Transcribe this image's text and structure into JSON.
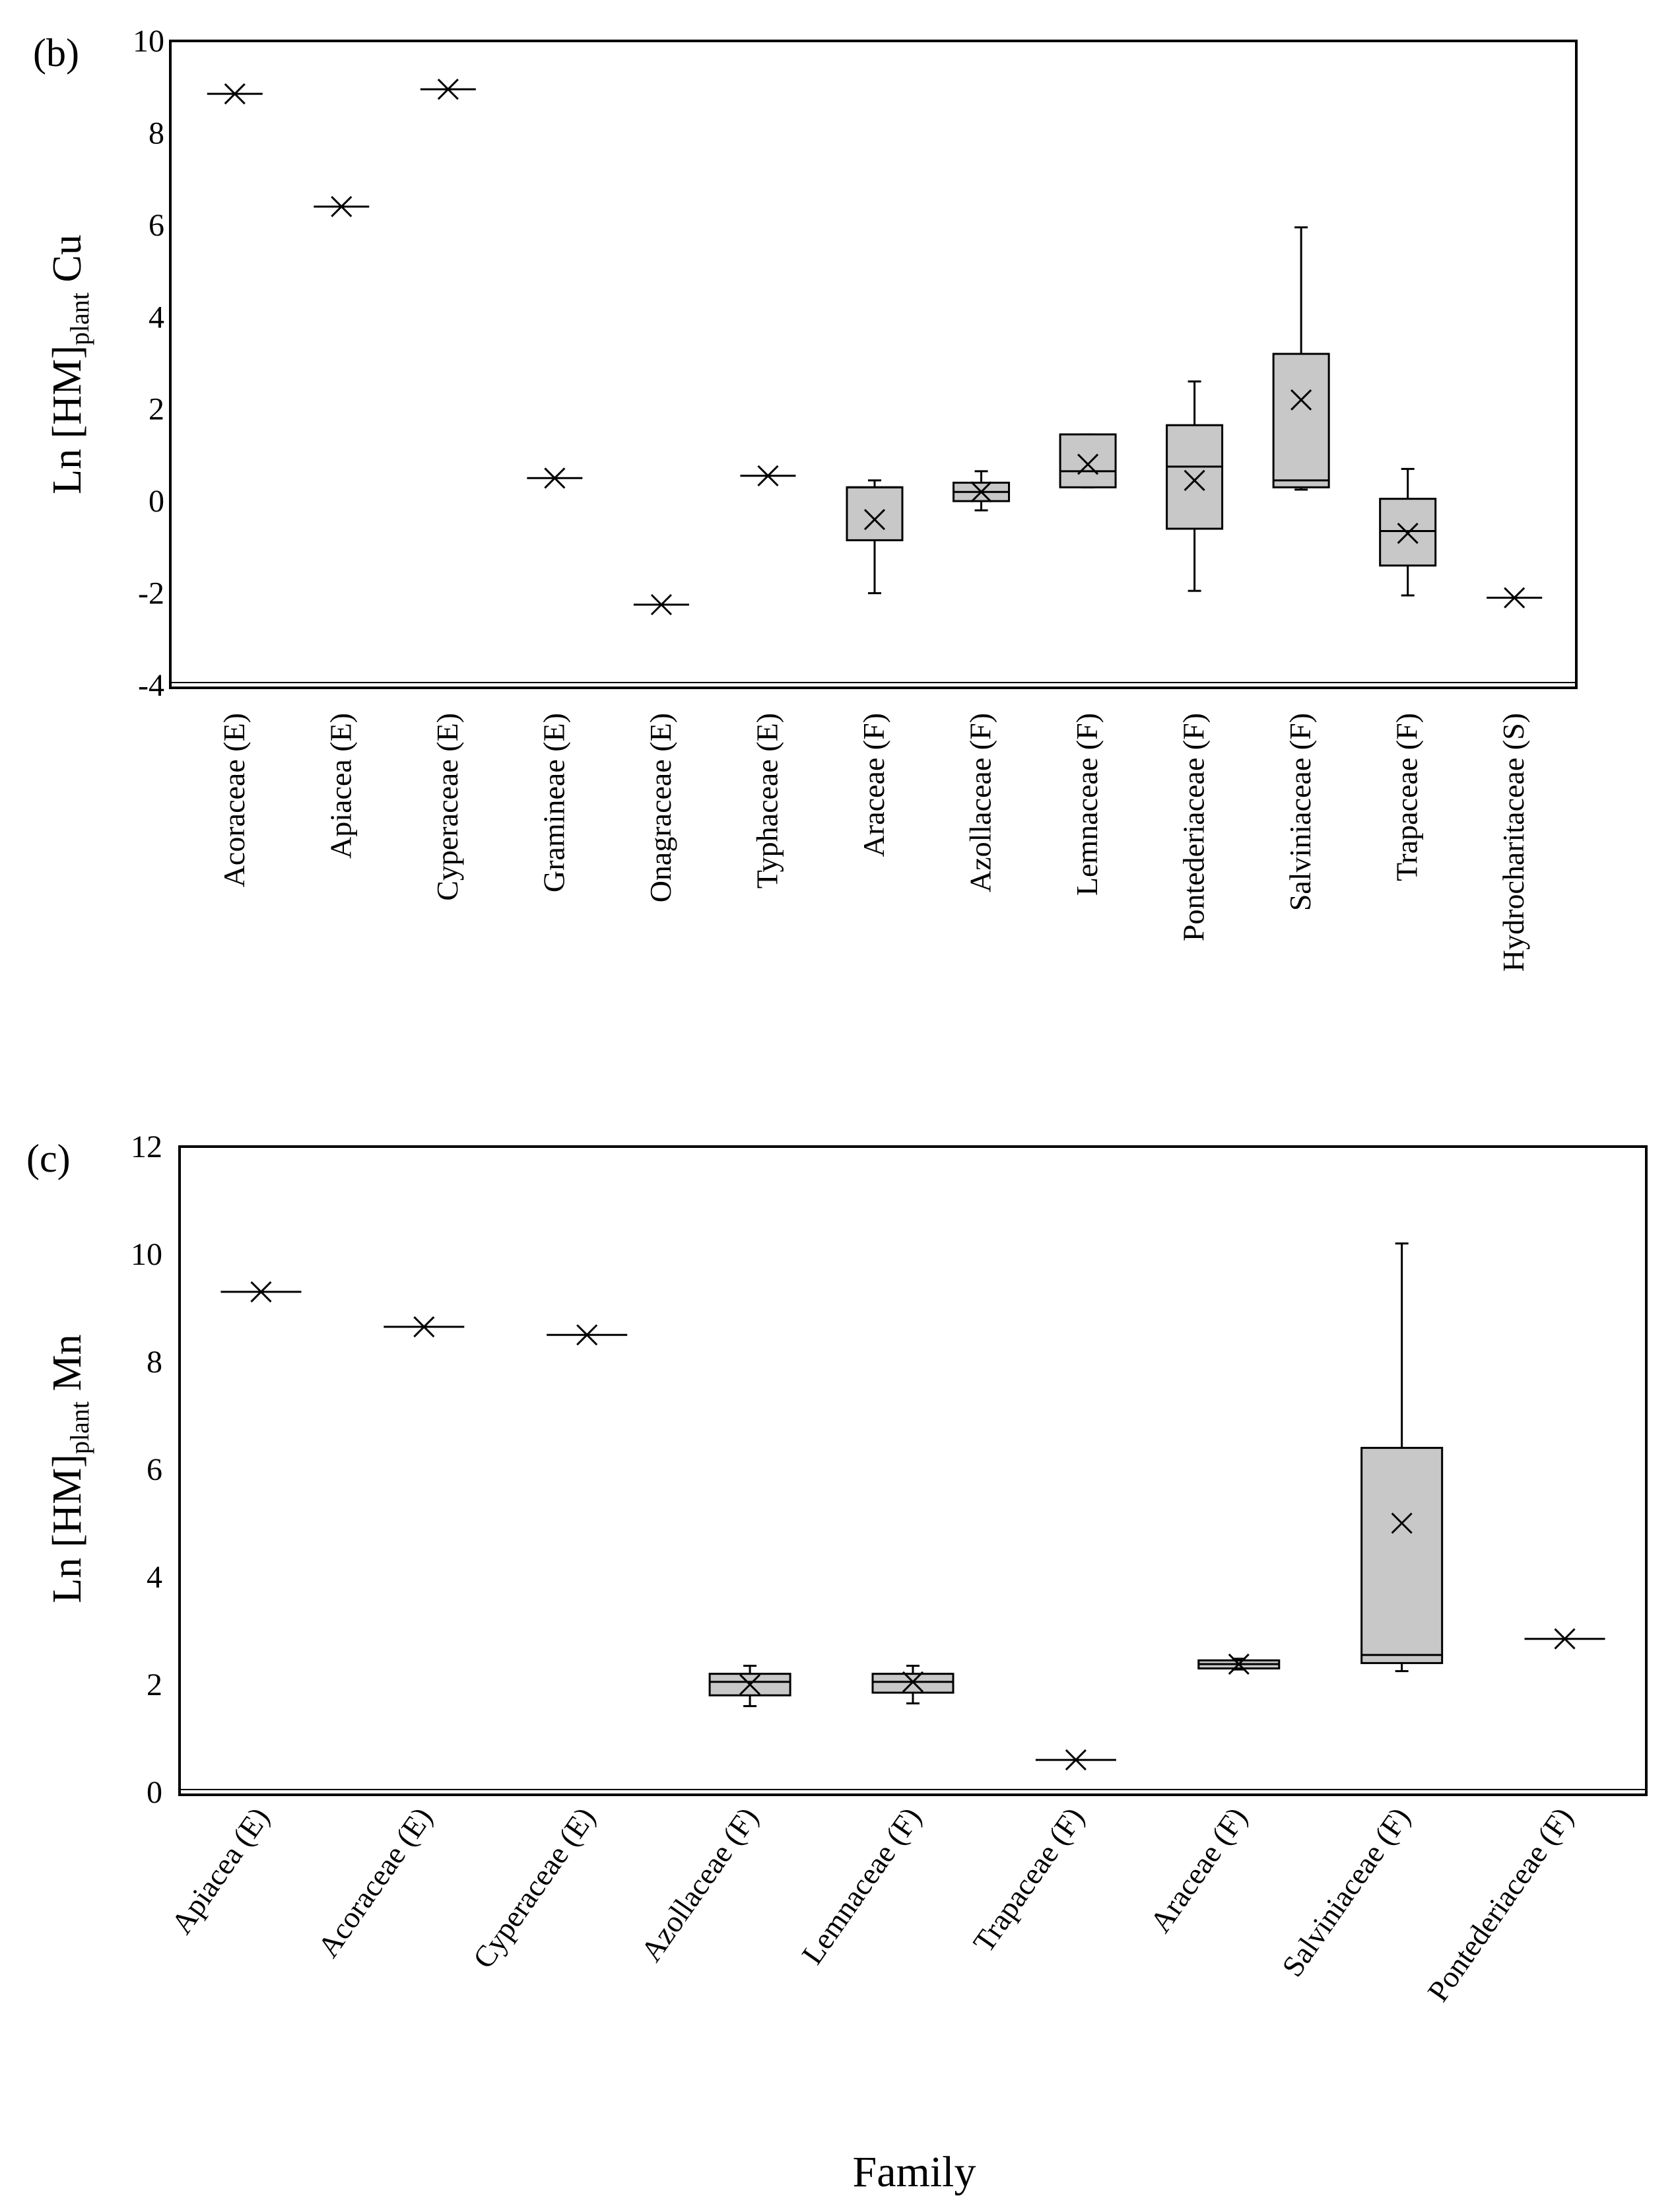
{
  "chart_data": [
    {
      "panel_label": "(b)",
      "type": "box",
      "ylabel": {
        "prefix": "Ln [HM]",
        "subscript": "plant",
        "suffix": " Cu"
      },
      "xlabel": "",
      "ylim": [
        -4,
        10
      ],
      "yticks": [
        "10",
        "8",
        "6",
        "4",
        "2",
        "0",
        "-2",
        "-4"
      ],
      "categories": [
        "Acoraceae (E)",
        "Apiacea (E)",
        "Cyperaceae (E)",
        "Gramineae (E)",
        "Onagraceae (E)",
        "Typhaceae (E)",
        "Araceae (F)",
        "Azollaceae (F)",
        "Lemnaceae (F)",
        "Pontederiaceae (F)",
        "Salviniaceae (F)",
        "Trapaceae (F)",
        "Hydrocharitaceae (S)"
      ],
      "boxes": [
        {
          "min": null,
          "q1": null,
          "median": 8.85,
          "q3": null,
          "max": null,
          "mean": 8.85
        },
        {
          "min": null,
          "q1": null,
          "median": 6.4,
          "q3": null,
          "max": null,
          "mean": 6.4
        },
        {
          "min": null,
          "q1": null,
          "median": 8.95,
          "q3": null,
          "max": null,
          "mean": 8.95
        },
        {
          "min": null,
          "q1": null,
          "median": 0.5,
          "q3": null,
          "max": null,
          "mean": 0.5
        },
        {
          "min": null,
          "q1": null,
          "median": -2.25,
          "q3": null,
          "max": null,
          "mean": -2.25
        },
        {
          "min": null,
          "q1": null,
          "median": 0.55,
          "q3": null,
          "max": null,
          "mean": 0.55
        },
        {
          "min": -2.0,
          "q1": -0.85,
          "median": 0.3,
          "q3": 0.3,
          "max": 0.45,
          "mean": -0.4
        },
        {
          "min": -0.2,
          "q1": 0.0,
          "median": 0.2,
          "q3": 0.4,
          "max": 0.65,
          "mean": 0.2
        },
        {
          "min": 0.3,
          "q1": 0.3,
          "median": 0.65,
          "q3": 1.45,
          "max": 1.45,
          "mean": 0.8
        },
        {
          "min": -1.95,
          "q1": -0.6,
          "median": 0.75,
          "q3": 1.65,
          "max": 2.6,
          "mean": 0.45
        },
        {
          "min": 0.25,
          "q1": 0.3,
          "median": 0.45,
          "q3": 3.2,
          "max": 5.95,
          "mean": 2.2
        },
        {
          "min": -2.05,
          "q1": -1.4,
          "median": -0.65,
          "q3": 0.05,
          "max": 0.7,
          "mean": -0.7
        },
        {
          "min": null,
          "q1": null,
          "median": -2.1,
          "q3": null,
          "max": null,
          "mean": -2.1
        }
      ]
    },
    {
      "panel_label": "(c)",
      "type": "box",
      "ylabel": {
        "prefix": "Ln [HM]",
        "subscript": "plant",
        "suffix": " Mn"
      },
      "xlabel": "Family",
      "ylim": [
        0,
        12
      ],
      "yticks": [
        "12",
        "10",
        "8",
        "6",
        "4",
        "2",
        "0"
      ],
      "categories": [
        "Apiacea (E)",
        "Acoraceae (E)",
        "Cyperaceae (E)",
        "Azollaceae (F)",
        "Lemnaceae (F)",
        "Trapaceae (F)",
        "Araceae (F)",
        "Salviniaceae (F)",
        "Pontederiaceae (F)"
      ],
      "boxes": [
        {
          "min": null,
          "q1": null,
          "median": 9.3,
          "q3": null,
          "max": null,
          "mean": 9.3
        },
        {
          "min": null,
          "q1": null,
          "median": 8.65,
          "q3": null,
          "max": null,
          "mean": 8.65
        },
        {
          "min": null,
          "q1": null,
          "median": 8.5,
          "q3": null,
          "max": null,
          "mean": 8.5
        },
        {
          "min": 1.6,
          "q1": 1.8,
          "median": 2.05,
          "q3": 2.2,
          "max": 2.35,
          "mean": 2.0
        },
        {
          "min": 1.65,
          "q1": 1.85,
          "median": 2.05,
          "q3": 2.2,
          "max": 2.35,
          "mean": 2.05
        },
        {
          "min": null,
          "q1": null,
          "median": 0.6,
          "q3": null,
          "max": null,
          "mean": 0.6
        },
        {
          "min": 2.28,
          "q1": 2.3,
          "median": 2.38,
          "q3": 2.45,
          "max": 2.48,
          "mean": 2.38
        },
        {
          "min": 2.25,
          "q1": 2.4,
          "median": 2.55,
          "q3": 6.4,
          "max": 10.2,
          "mean": 5.0
        },
        {
          "min": null,
          "q1": null,
          "median": 2.85,
          "q3": null,
          "max": null,
          "mean": 2.85
        }
      ]
    }
  ],
  "colors": {
    "box_fill": "#c8c8c8",
    "ink": "#000000",
    "background": "#ffffff"
  }
}
